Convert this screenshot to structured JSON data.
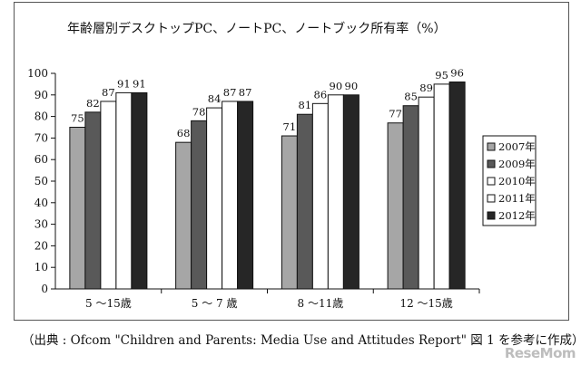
{
  "chart_data": {
    "type": "bar",
    "title": "年齢層別デスクトップPC、ノートPC、ノートブック所有率（%）",
    "xlabel": "",
    "ylabel": "",
    "ylim": [
      0,
      100
    ],
    "yticks": [
      0,
      10,
      20,
      30,
      40,
      50,
      60,
      70,
      80,
      90,
      100
    ],
    "grid": false,
    "legend_position": "right",
    "categories": [
      "5 〜15歳",
      "5 〜 7 歳",
      "8 〜11歳",
      "12 〜15歳"
    ],
    "series": [
      {
        "name": "2007年",
        "color": "#a6a6a6",
        "values": [
          75,
          68,
          71,
          77
        ]
      },
      {
        "name": "2009年",
        "color": "#595959",
        "values": [
          82,
          78,
          81,
          85
        ]
      },
      {
        "name": "2010年",
        "color": "#ffffff",
        "values": [
          87,
          84,
          86,
          89
        ]
      },
      {
        "name": "2011年",
        "color": "#ffffff",
        "values": [
          91,
          87,
          90,
          95
        ]
      },
      {
        "name": "2012年",
        "color": "#262626",
        "values": [
          91,
          87,
          90,
          96
        ]
      }
    ]
  },
  "source_text": "（出典 : Ofcom \"Children and Parents: Media Use and Attitudes Report\" 図 1 を参考に作成）",
  "watermark": "ReseMom"
}
